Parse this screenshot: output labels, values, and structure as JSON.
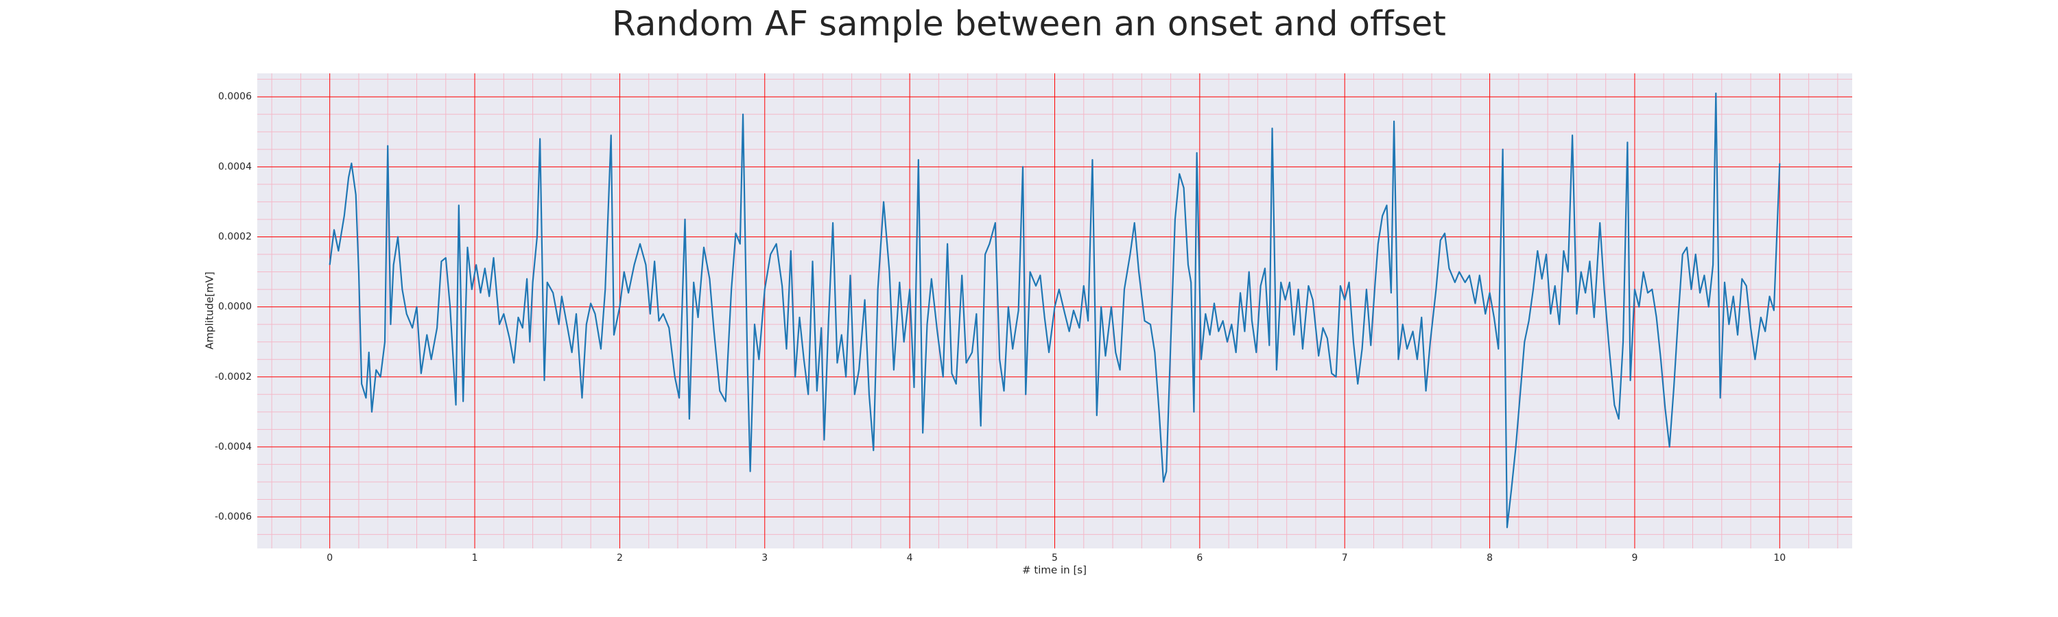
{
  "chart_data": {
    "type": "line",
    "title": "Random AF sample between an onset and offset",
    "x_label": "# time in [s]",
    "y_label": "Amplitude[mV]",
    "xlim": [
      -0.5,
      10.5
    ],
    "ylim": [
      -0.00069,
      0.000667
    ],
    "xticks": [
      0,
      1,
      2,
      3,
      4,
      5,
      6,
      7,
      8,
      9,
      10
    ],
    "yticks": [
      -0.0006,
      -0.0004,
      -0.0002,
      {
        "value": 0,
        "label": "0.0000"
      },
      0.0002,
      0.0004,
      0.0006
    ],
    "grid": true,
    "minor_grid": true,
    "grid_color": "#ff0000",
    "minor_grid_color": "#f4b8c8",
    "background": "#eaeaf2",
    "x": [
      0,
      0.03,
      0.06,
      0.1,
      0.13,
      0.15,
      0.18,
      0.2,
      0.22,
      0.25,
      0.27,
      0.29,
      0.32,
      0.35,
      0.38,
      0.4,
      0.42,
      0.44,
      0.47,
      0.5,
      0.53,
      0.57,
      0.6,
      0.63,
      0.67,
      0.7,
      0.74,
      0.77,
      0.8,
      0.83,
      0.87,
      0.89,
      0.92,
      0.95,
      0.98,
      1.01,
      1.04,
      1.07,
      1.1,
      1.13,
      1.17,
      1.2,
      1.24,
      1.27,
      1.3,
      1.33,
      1.36,
      1.38,
      1.4,
      1.43,
      1.45,
      1.48,
      1.5,
      1.54,
      1.58,
      1.6,
      1.64,
      1.67,
      1.7,
      1.74,
      1.77,
      1.8,
      1.83,
      1.87,
      1.9,
      1.94,
      1.96,
      2,
      2.03,
      2.06,
      2.1,
      2.14,
      2.18,
      2.21,
      2.24,
      2.27,
      2.3,
      2.34,
      2.38,
      2.41,
      2.45,
      2.48,
      2.51,
      2.54,
      2.58,
      2.62,
      2.65,
      2.69,
      2.73,
      2.77,
      2.8,
      2.83,
      2.85,
      2.88,
      2.9,
      2.93,
      2.96,
      3,
      3.04,
      3.08,
      3.12,
      3.15,
      3.18,
      3.21,
      3.24,
      3.27,
      3.3,
      3.33,
      3.36,
      3.39,
      3.41,
      3.44,
      3.47,
      3.5,
      3.53,
      3.56,
      3.59,
      3.62,
      3.65,
      3.69,
      3.72,
      3.75,
      3.78,
      3.82,
      3.86,
      3.89,
      3.93,
      3.96,
      4,
      4.03,
      4.06,
      4.09,
      4.12,
      4.15,
      4.19,
      4.23,
      4.26,
      4.29,
      4.32,
      4.36,
      4.39,
      4.43,
      4.46,
      4.49,
      4.52,
      4.55,
      4.59,
      4.62,
      4.65,
      4.68,
      4.71,
      4.75,
      4.78,
      4.8,
      4.83,
      4.87,
      4.9,
      4.93,
      4.96,
      5,
      5.03,
      5.07,
      5.1,
      5.13,
      5.17,
      5.2,
      5.23,
      5.26,
      5.29,
      5.32,
      5.35,
      5.39,
      5.42,
      5.45,
      5.48,
      5.52,
      5.55,
      5.58,
      5.62,
      5.66,
      5.69,
      5.72,
      5.75,
      5.77,
      5.8,
      5.83,
      5.86,
      5.89,
      5.92,
      5.94,
      5.96,
      5.98,
      6.01,
      6.04,
      6.07,
      6.1,
      6.13,
      6.16,
      6.19,
      6.22,
      6.25,
      6.28,
      6.31,
      6.34,
      6.36,
      6.39,
      6.42,
      6.45,
      6.48,
      6.5,
      6.53,
      6.56,
      6.59,
      6.62,
      6.65,
      6.68,
      6.71,
      6.75,
      6.78,
      6.82,
      6.85,
      6.88,
      6.91,
      6.94,
      6.97,
      7,
      7.03,
      7.06,
      7.09,
      7.12,
      7.15,
      7.18,
      7.21,
      7.23,
      7.26,
      7.29,
      7.32,
      7.34,
      7.37,
      7.4,
      7.43,
      7.47,
      7.5,
      7.53,
      7.56,
      7.59,
      7.63,
      7.66,
      7.69,
      7.72,
      7.76,
      7.79,
      7.83,
      7.86,
      7.9,
      7.93,
      7.97,
      8,
      8.03,
      8.06,
      8.09,
      8.12,
      8.15,
      8.18,
      8.21,
      8.24,
      8.27,
      8.3,
      8.33,
      8.36,
      8.39,
      8.42,
      8.45,
      8.48,
      8.51,
      8.54,
      8.57,
      8.6,
      8.63,
      8.66,
      8.69,
      8.72,
      8.76,
      8.79,
      8.82,
      8.86,
      8.89,
      8.92,
      8.95,
      8.97,
      9,
      9.03,
      9.06,
      9.09,
      9.12,
      9.15,
      9.18,
      9.21,
      9.24,
      9.27,
      9.3,
      9.33,
      9.36,
      9.39,
      9.42,
      9.45,
      9.48,
      9.51,
      9.54,
      9.56,
      9.59,
      9.62,
      9.65,
      9.68,
      9.71,
      9.74,
      9.77,
      9.8,
      9.83,
      9.87,
      9.9,
      9.93,
      9.96,
      10
    ],
    "series": [
      {
        "color": "#1f77b4",
        "values": [
          0.00012,
          0.00022,
          0.00016,
          0.00026,
          0.00037,
          0.00041,
          0.00032,
          0.0001,
          -0.00022,
          -0.00026,
          -0.00013,
          -0.0003,
          -0.00018,
          -0.0002,
          -0.0001,
          0.00046,
          -5e-05,
          0.00012,
          0.0002,
          5e-05,
          -2e-05,
          -6e-05,
          0,
          -0.00019,
          -8e-05,
          -0.00015,
          -6e-05,
          0.00013,
          0.00014,
          0,
          -0.00028,
          0.00029,
          -0.00027,
          0.00017,
          5e-05,
          0.00012,
          4e-05,
          0.00011,
          3e-05,
          0.00014,
          -5e-05,
          -2e-05,
          -9e-05,
          -0.00016,
          -3e-05,
          -6e-05,
          8e-05,
          -0.0001,
          7e-05,
          0.0002,
          0.00048,
          -0.00021,
          7e-05,
          4e-05,
          -5e-05,
          3e-05,
          -6e-05,
          -0.00013,
          -2e-05,
          -0.00026,
          -5e-05,
          1e-05,
          -2e-05,
          -0.00012,
          5e-05,
          0.00049,
          -8e-05,
          0,
          0.0001,
          4e-05,
          0.00012,
          0.00018,
          0.00012,
          -2e-05,
          0.00013,
          -4e-05,
          -2e-05,
          -6e-05,
          -0.0002,
          -0.00026,
          0.00025,
          -0.00032,
          7e-05,
          -3e-05,
          0.00017,
          8e-05,
          -7e-05,
          -0.00024,
          -0.00027,
          5e-05,
          0.00021,
          0.00018,
          0.00055,
          -0.00015,
          -0.00047,
          -5e-05,
          -0.00015,
          5e-05,
          0.00015,
          0.00018,
          6e-05,
          -0.00012,
          0.00016,
          -0.0002,
          -3e-05,
          -0.00015,
          -0.00025,
          0.00013,
          -0.00024,
          -6e-05,
          -0.00038,
          -4e-05,
          0.00024,
          -0.00016,
          -8e-05,
          -0.0002,
          9e-05,
          -0.00025,
          -0.00018,
          2e-05,
          -0.00025,
          -0.00041,
          5e-05,
          0.0003,
          0.0001,
          -0.00018,
          7e-05,
          -0.0001,
          5e-05,
          -0.00023,
          0.00042,
          -0.00036,
          -5e-05,
          8e-05,
          -7e-05,
          -0.0002,
          0.00018,
          -0.00019,
          -0.00022,
          9e-05,
          -0.00016,
          -0.00013,
          -2e-05,
          -0.00034,
          0.00015,
          0.00018,
          0.00024,
          -0.00015,
          -0.00024,
          0,
          -0.00012,
          -1e-05,
          0.0004,
          -0.00025,
          0.0001,
          6e-05,
          9e-05,
          -3e-05,
          -0.00013,
          0,
          5e-05,
          -2e-05,
          -7e-05,
          -1e-05,
          -6e-05,
          6e-05,
          -4e-05,
          0.00042,
          -0.00031,
          0,
          -0.00014,
          0,
          -0.00013,
          -0.00018,
          5e-05,
          0.00015,
          0.00024,
          0.0001,
          -4e-05,
          -5e-05,
          -0.00013,
          -0.0003,
          -0.0005,
          -0.00047,
          -0.0001,
          0.00025,
          0.00038,
          0.00034,
          0.00012,
          7e-05,
          -0.0003,
          0.00044,
          -0.00015,
          -2e-05,
          -8e-05,
          1e-05,
          -7e-05,
          -4e-05,
          -0.0001,
          -5e-05,
          -0.00013,
          4e-05,
          -7e-05,
          0.0001,
          -4e-05,
          -0.00013,
          6e-05,
          0.00011,
          -0.00011,
          0.00051,
          -0.00018,
          7e-05,
          2e-05,
          7e-05,
          -8e-05,
          5e-05,
          -0.00012,
          6e-05,
          2e-05,
          -0.00014,
          -6e-05,
          -9e-05,
          -0.00019,
          -0.0002,
          6e-05,
          2e-05,
          7e-05,
          -0.0001,
          -0.00022,
          -0.00012,
          5e-05,
          -0.00011,
          7e-05,
          0.00018,
          0.00026,
          0.00029,
          4e-05,
          0.00053,
          -0.00015,
          -5e-05,
          -0.00012,
          -7e-05,
          -0.00015,
          -3e-05,
          -0.00024,
          -0.0001,
          5e-05,
          0.00019,
          0.00021,
          0.00011,
          7e-05,
          0.0001,
          7e-05,
          9e-05,
          1e-05,
          9e-05,
          -2e-05,
          4e-05,
          -3e-05,
          -0.00012,
          0.00045,
          -0.00063,
          -0.00052,
          -0.0004,
          -0.00025,
          -0.0001,
          -4e-05,
          5e-05,
          0.00016,
          8e-05,
          0.00015,
          -2e-05,
          6e-05,
          -5e-05,
          0.00016,
          0.0001,
          0.00049,
          -2e-05,
          0.0001,
          4e-05,
          0.00013,
          -3e-05,
          0.00024,
          5e-05,
          -0.0001,
          -0.00028,
          -0.00032,
          -0.0001,
          0.00047,
          -0.00021,
          5e-05,
          0,
          0.0001,
          4e-05,
          5e-05,
          -3e-05,
          -0.00015,
          -0.00029,
          -0.0004,
          -0.00023,
          -3e-05,
          0.00015,
          0.00017,
          5e-05,
          0.00015,
          4e-05,
          9e-05,
          0,
          0.00012,
          0.00061,
          -0.00026,
          7e-05,
          -5e-05,
          3e-05,
          -8e-05,
          8e-05,
          6e-05,
          -6e-05,
          -0.00015,
          -3e-05,
          -7e-05,
          3e-05,
          -1e-05,
          0.00041
        ]
      }
    ]
  }
}
